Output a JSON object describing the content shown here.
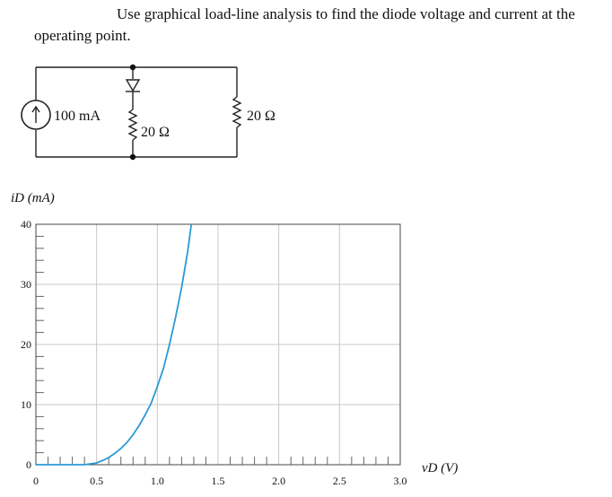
{
  "problem_text": "Use graphical load-line analysis to find the diode voltage and current at the operating point.",
  "circuit": {
    "source_label": "100 mA",
    "middle_resistor_label": "20 Ω",
    "right_resistor_label": "20 Ω"
  },
  "chart_data": {
    "type": "line",
    "title": "",
    "ylabel": "iD (mA)",
    "xlabel": "vD (V)",
    "xlim": [
      0,
      3.0
    ],
    "ylim": [
      0,
      40
    ],
    "x_ticks": [
      "0",
      "0.5",
      "1.0",
      "1.5",
      "2.0",
      "2.5",
      "3.0"
    ],
    "y_ticks": [
      "0",
      "10",
      "20",
      "30",
      "40"
    ],
    "grid": true,
    "series": [
      {
        "x": [
          0.4,
          0.5,
          0.55,
          0.6,
          0.65,
          0.7,
          0.75,
          0.8,
          0.85,
          0.9,
          0.95,
          1.0,
          1.05,
          1.1,
          1.15,
          1.2,
          1.25,
          1.28
        ],
        "values": [
          0.0,
          0.3,
          0.7,
          1.2,
          1.9,
          2.7,
          3.7,
          5.0,
          6.5,
          8.3,
          10.3,
          13.0,
          16.0,
          20.0,
          24.5,
          29.5,
          35.5,
          40.0
        ]
      }
    ],
    "line_color": "#2a9ad6"
  }
}
